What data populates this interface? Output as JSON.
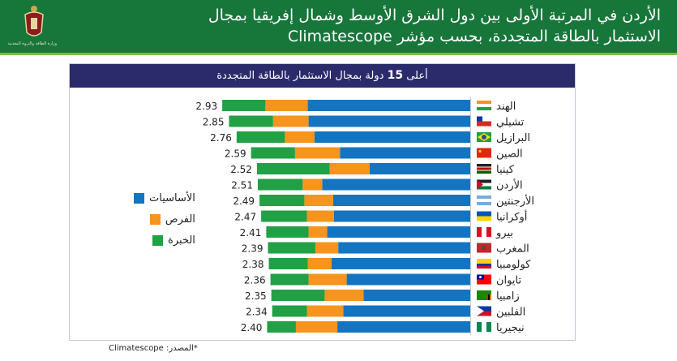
{
  "header": {
    "title_line1": "الأردن في المرتبة الأولى بين دول الشرق الأوسط وشمال إفريقيا بمجال",
    "title_line2": "الاستثمار بالطاقة المتجددة، بحسب مؤشر Climatescope",
    "logo_text": "وزارة الطاقة والثروة المعدنية",
    "background_color": "#17763a"
  },
  "chart_data": {
    "type": "bar",
    "orientation": "horizontal-stacked",
    "title_pre": "أعلى",
    "title_num": "15",
    "title_post": "دولة بمجال الاستثمار بالطاقة المتجددة",
    "categories": [
      "الهند",
      "تشيلي",
      "البرازيل",
      "الصين",
      "كينيا",
      "الأردن",
      "الأرجنتين",
      "أوكرانيا",
      "بيرو",
      "المغرب",
      "كولومبيا",
      "تايوان",
      "زامبيا",
      "الفلبين",
      "نيجيريا"
    ],
    "flags": [
      "india",
      "chile",
      "brazil",
      "china",
      "kenya",
      "jordan",
      "argentina",
      "ukraine",
      "peru",
      "morocco",
      "colombia",
      "taiwan",
      "zambia",
      "philippines",
      "nigeria"
    ],
    "totals": [
      "2.93",
      "2.85",
      "2.76",
      "2.59",
      "2.52",
      "2.51",
      "2.49",
      "2.47",
      "2.41",
      "2.39",
      "2.38",
      "2.36",
      "2.35",
      "2.34",
      "2.40"
    ],
    "series": [
      {
        "name": "الأساسيات",
        "color": "#1574c0",
        "values": [
          1.92,
          1.91,
          1.84,
          1.54,
          1.19,
          1.75,
          1.62,
          1.61,
          1.69,
          1.56,
          1.64,
          1.46,
          1.26,
          1.5,
          1.57
        ]
      },
      {
        "name": "الفرص",
        "color": "#f7941d",
        "values": [
          0.5,
          0.42,
          0.35,
          0.53,
          0.47,
          0.23,
          0.34,
          0.32,
          0.22,
          0.27,
          0.28,
          0.45,
          0.46,
          0.43,
          0.49
        ]
      },
      {
        "name": "الخبرة",
        "color": "#22a045",
        "values": [
          0.51,
          0.52,
          0.57,
          0.52,
          0.86,
          0.53,
          0.53,
          0.54,
          0.5,
          0.56,
          0.46,
          0.45,
          0.63,
          0.41,
          0.34
        ]
      }
    ],
    "legend": "left"
  },
  "source": "*المصدر: Climatescope"
}
